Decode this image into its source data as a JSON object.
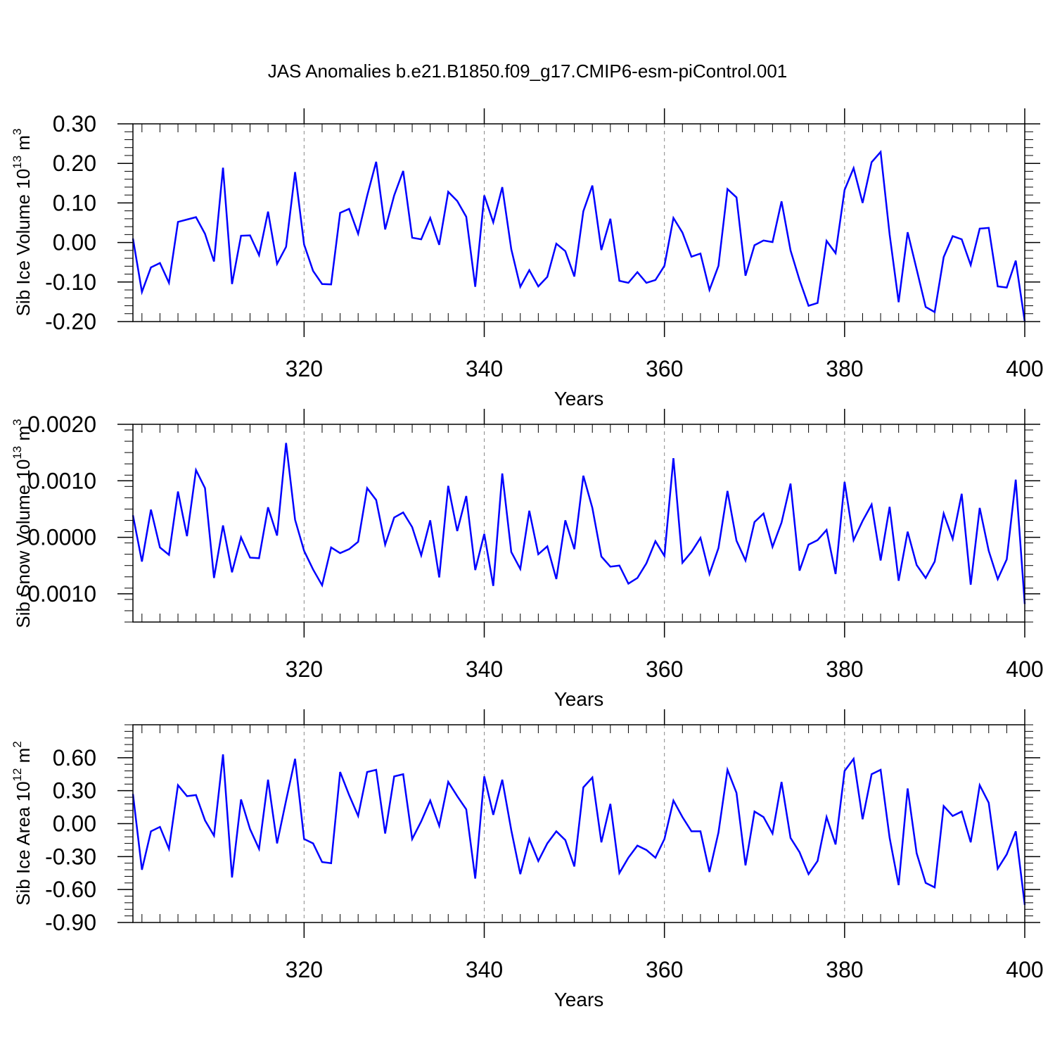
{
  "figure": {
    "title": "JAS Anomalies b.e21.B1850.f09_g17.CMIP6-esm-piControl.001"
  },
  "style": {
    "line_color": "#0000ff",
    "axis_color": "#000000",
    "grid_color": "#888888"
  },
  "chart_data": [
    {
      "type": "line",
      "ylabel_main": "Sib Ice Volume 10",
      "ylabel_exp1": "13",
      "ylabel_unit": " m",
      "ylabel_exp2": "3",
      "xlabel": "Years",
      "xlim": [
        301,
        400
      ],
      "ylim": [
        -0.2,
        0.3
      ],
      "yticks": [
        -0.2,
        -0.1,
        0.0,
        0.1,
        0.2,
        0.3
      ],
      "ytick_labels": [
        "-0.20",
        "-0.10",
        "0.00",
        "0.10",
        "0.20",
        "0.30"
      ],
      "xticks": [
        320,
        340,
        360,
        380,
        400
      ],
      "xtick_labels": [
        "320",
        "340",
        "360",
        "380",
        "400"
      ],
      "grid": "vertical dashed at major x ticks",
      "series": [
        {
          "x": [
            301,
            302,
            303,
            304,
            305,
            306,
            307,
            308,
            309,
            310,
            311,
            312,
            313,
            314,
            315,
            316,
            317,
            318,
            319,
            320,
            321,
            322,
            323,
            324,
            325,
            326,
            327,
            328,
            329,
            330,
            331,
            332,
            333,
            334,
            335,
            336,
            337,
            338,
            339,
            340,
            341,
            342,
            343,
            344,
            345,
            346,
            347,
            348,
            349,
            350,
            351,
            352,
            353,
            354,
            355,
            356,
            357,
            358,
            359,
            360,
            361,
            362,
            363,
            364,
            365,
            366,
            367,
            368,
            369,
            370,
            371,
            372,
            373,
            374,
            375,
            376,
            377,
            378,
            379,
            380,
            381,
            382,
            383,
            384,
            385,
            386,
            387,
            388,
            389,
            390,
            391,
            392,
            393,
            394,
            395,
            396,
            397,
            398,
            399,
            400
          ],
          "values": [
            0.01,
            -0.125,
            -0.063,
            -0.052,
            -0.102,
            0.052,
            0.058,
            0.064,
            0.022,
            -0.048,
            0.189,
            -0.105,
            0.017,
            0.018,
            -0.032,
            0.078,
            -0.054,
            -0.011,
            0.178,
            -0.005,
            -0.072,
            -0.105,
            -0.106,
            0.075,
            0.085,
            0.022,
            0.118,
            0.204,
            0.033,
            0.119,
            0.181,
            0.012,
            0.008,
            0.062,
            -0.006,
            0.128,
            0.105,
            0.065,
            -0.112,
            0.119,
            0.051,
            0.14,
            -0.017,
            -0.112,
            -0.07,
            -0.111,
            -0.087,
            -0.003,
            -0.022,
            -0.086,
            0.079,
            0.144,
            -0.019,
            0.06,
            -0.097,
            -0.102,
            -0.075,
            -0.102,
            -0.095,
            -0.059,
            0.062,
            0.025,
            -0.036,
            -0.028,
            -0.12,
            -0.059,
            0.135,
            0.114,
            -0.084,
            -0.007,
            0.005,
            0.001,
            0.104,
            -0.02,
            -0.095,
            -0.16,
            -0.153,
            0.004,
            -0.027,
            0.133,
            0.188,
            0.1,
            0.203,
            0.229,
            0.02,
            -0.151,
            0.026,
            -0.068,
            -0.163,
            -0.176,
            -0.037,
            0.016,
            0.008,
            -0.057,
            0.035,
            0.037,
            -0.111,
            -0.114,
            -0.046,
            -0.2
          ]
        }
      ]
    },
    {
      "type": "line",
      "ylabel_main": "Sib Snow Volume 10",
      "ylabel_exp1": "13",
      "ylabel_unit": " m",
      "ylabel_exp2": "3",
      "xlabel": "Years",
      "xlim": [
        301,
        400
      ],
      "ylim": [
        -0.0015,
        0.002
      ],
      "yticks": [
        -0.001,
        0.0,
        0.001,
        0.002
      ],
      "ytick_labels": [
        "-0.0010",
        "0.0000",
        "0.0010",
        "0.0020"
      ],
      "xticks": [
        320,
        340,
        360,
        380,
        400
      ],
      "xtick_labels": [
        "320",
        "340",
        "360",
        "380",
        "400"
      ],
      "grid": "vertical dashed at major x ticks",
      "series": [
        {
          "x": [
            301,
            302,
            303,
            304,
            305,
            306,
            307,
            308,
            309,
            310,
            311,
            312,
            313,
            314,
            315,
            316,
            317,
            318,
            319,
            320,
            321,
            322,
            323,
            324,
            325,
            326,
            327,
            328,
            329,
            330,
            331,
            332,
            333,
            334,
            335,
            336,
            337,
            338,
            339,
            340,
            341,
            342,
            343,
            344,
            345,
            346,
            347,
            348,
            349,
            350,
            351,
            352,
            353,
            354,
            355,
            356,
            357,
            358,
            359,
            360,
            361,
            362,
            363,
            364,
            365,
            366,
            367,
            368,
            369,
            370,
            371,
            372,
            373,
            374,
            375,
            376,
            377,
            378,
            379,
            380,
            381,
            382,
            383,
            384,
            385,
            386,
            387,
            388,
            389,
            390,
            391,
            392,
            393,
            394,
            395,
            396,
            397,
            398,
            399,
            400
          ],
          "values": [
            0.00039,
            -0.00043,
            0.00049,
            -0.00018,
            -0.00031,
            0.00081,
            2e-05,
            0.00119,
            0.00087,
            -0.00072,
            0.00021,
            -0.00062,
            0.0,
            -0.00036,
            -0.00037,
            0.00053,
            3e-05,
            0.00167,
            0.00031,
            -0.00024,
            -0.00057,
            -0.00085,
            -0.00018,
            -0.00028,
            -0.00021,
            -8e-05,
            0.00087,
            0.00066,
            -0.00013,
            0.00035,
            0.00044,
            0.00018,
            -0.00032,
            0.0003,
            -0.00071,
            0.00091,
            0.00011,
            0.00073,
            -0.00058,
            6e-05,
            -0.00086,
            0.00113,
            -0.00026,
            -0.00056,
            0.00047,
            -0.0003,
            -0.00016,
            -0.00074,
            0.0003,
            -0.00021,
            0.00109,
            0.00052,
            -0.00034,
            -0.00052,
            -0.0005,
            -0.00082,
            -0.00072,
            -0.00046,
            -7e-05,
            -0.00033,
            0.0014,
            -0.00045,
            -0.00026,
            -1e-05,
            -0.00065,
            -0.00019,
            0.00082,
            -6e-05,
            -0.00041,
            0.00027,
            0.00042,
            -0.00017,
            0.00026,
            0.00095,
            -0.00059,
            -0.00013,
            -5e-05,
            0.00013,
            -0.00065,
            0.00098,
            -5e-05,
            0.00029,
            0.00058,
            -0.00041,
            0.00054,
            -0.00077,
            0.0001,
            -0.00049,
            -0.00072,
            -0.00043,
            0.00042,
            -3e-05,
            0.00077,
            -0.00084,
            0.00052,
            -0.00024,
            -0.00074,
            -0.00039,
            0.00102,
            -0.00118
          ]
        }
      ]
    },
    {
      "type": "line",
      "ylabel_main": "Sib Ice Area 10",
      "ylabel_exp1": "12",
      "ylabel_unit": " m",
      "ylabel_exp2": "2",
      "xlabel": "Years",
      "xlim": [
        301,
        400
      ],
      "ylim": [
        -0.9,
        0.9
      ],
      "yticks": [
        -0.9,
        -0.6,
        -0.3,
        0.0,
        0.3,
        0.6
      ],
      "ytick_labels": [
        "-0.90",
        "-0.60",
        "-0.30",
        "0.00",
        "0.30",
        "0.60"
      ],
      "xticks": [
        320,
        340,
        360,
        380,
        400
      ],
      "xtick_labels": [
        "320",
        "340",
        "360",
        "380",
        "400"
      ],
      "grid": "vertical dashed at major x ticks",
      "series": [
        {
          "x": [
            301,
            302,
            303,
            304,
            305,
            306,
            307,
            308,
            309,
            310,
            311,
            312,
            313,
            314,
            315,
            316,
            317,
            318,
            319,
            320,
            321,
            322,
            323,
            324,
            325,
            326,
            327,
            328,
            329,
            330,
            331,
            332,
            333,
            334,
            335,
            336,
            337,
            338,
            339,
            340,
            341,
            342,
            343,
            344,
            345,
            346,
            347,
            348,
            349,
            350,
            351,
            352,
            353,
            354,
            355,
            356,
            357,
            358,
            359,
            360,
            361,
            362,
            363,
            364,
            365,
            366,
            367,
            368,
            369,
            370,
            371,
            372,
            373,
            374,
            375,
            376,
            377,
            378,
            379,
            380,
            381,
            382,
            383,
            384,
            385,
            386,
            387,
            388,
            389,
            390,
            391,
            392,
            393,
            394,
            395,
            396,
            397,
            398,
            399,
            400
          ],
          "values": [
            0.27,
            -0.42,
            -0.07,
            -0.03,
            -0.23,
            0.35,
            0.25,
            0.26,
            0.03,
            -0.11,
            0.63,
            -0.49,
            0.22,
            -0.05,
            -0.23,
            0.4,
            -0.18,
            0.21,
            0.59,
            -0.14,
            -0.18,
            -0.35,
            -0.36,
            0.47,
            0.26,
            0.07,
            0.47,
            0.49,
            -0.09,
            0.43,
            0.45,
            -0.14,
            0.02,
            0.21,
            -0.02,
            0.38,
            0.25,
            0.13,
            -0.5,
            0.43,
            0.08,
            0.4,
            -0.06,
            -0.46,
            -0.14,
            -0.34,
            -0.18,
            -0.07,
            -0.15,
            -0.39,
            0.33,
            0.42,
            -0.17,
            0.18,
            -0.45,
            -0.31,
            -0.2,
            -0.24,
            -0.31,
            -0.14,
            0.21,
            0.06,
            -0.07,
            -0.07,
            -0.44,
            -0.08,
            0.49,
            0.28,
            -0.38,
            0.11,
            0.06,
            -0.09,
            0.38,
            -0.13,
            -0.26,
            -0.46,
            -0.34,
            0.06,
            -0.19,
            0.48,
            0.59,
            0.04,
            0.45,
            0.49,
            -0.13,
            -0.56,
            0.32,
            -0.27,
            -0.54,
            -0.58,
            0.16,
            0.07,
            0.11,
            -0.17,
            0.35,
            0.19,
            -0.41,
            -0.28,
            -0.07,
            -0.74
          ]
        }
      ]
    }
  ]
}
